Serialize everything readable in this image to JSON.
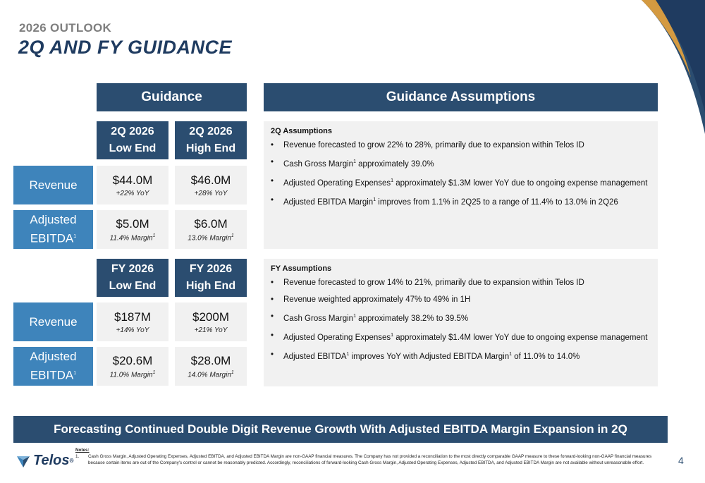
{
  "header": {
    "subtitle": "2026 OUTLOOK",
    "title": "2Q AND FY GUIDANCE"
  },
  "guidance": {
    "title": "Guidance",
    "q2": {
      "low_header": [
        "2Q 2026",
        "Low End"
      ],
      "high_header": [
        "2Q 2026",
        "High End"
      ],
      "revenue_label": "Revenue",
      "ebitda_label": "Adjusted",
      "ebitda_label2": "EBITDA",
      "revenue_low": "$44.0M",
      "revenue_low_sub": "+22% YoY",
      "revenue_high": "$46.0M",
      "revenue_high_sub": "+28% YoY",
      "ebitda_low": "$5.0M",
      "ebitda_low_sub": "11.4% Margin",
      "ebitda_high": "$6.0M",
      "ebitda_high_sub": "13.0% Margin"
    },
    "fy": {
      "low_header": [
        "FY 2026",
        "Low End"
      ],
      "high_header": [
        "FY 2026",
        "High End"
      ],
      "revenue_label": "Revenue",
      "ebitda_label": "Adjusted",
      "ebitda_label2": "EBITDA",
      "revenue_low": "$187M",
      "revenue_low_sub": "+14% YoY",
      "revenue_high": "$200M",
      "revenue_high_sub": "+21% YoY",
      "ebitda_low": "$20.6M",
      "ebitda_low_sub": "11.0% Margin",
      "ebitda_high": "$28.0M",
      "ebitda_high_sub": "14.0% Margin"
    }
  },
  "assumptions": {
    "title": "Guidance Assumptions",
    "q2_title": "2Q Assumptions",
    "q2_bullets": [
      "Revenue forecasted to grow 22% to 28%, primarily due to expansion within Telos ID",
      [
        "Cash Gross Margin",
        " approximately 39.0%"
      ],
      [
        "Adjusted Operating Expenses",
        " approximately $1.3M lower YoY due to ongoing expense management"
      ],
      [
        "Adjusted EBITDA Margin",
        " improves from 1.1% in 2Q25 to a range of 11.4% to 13.0% in 2Q26"
      ]
    ],
    "fy_title": "FY Assumptions",
    "fy_bullets": [
      "Revenue forecasted to grow 14% to 21%, primarily due to expansion within Telos ID",
      "Revenue weighted approximately 47% to 49% in 1H",
      [
        "Cash Gross Margin",
        " approximately 38.2% to 39.5%"
      ],
      [
        "Adjusted Operating Expenses",
        " approximately $1.4M lower YoY due to ongoing expense management"
      ],
      [
        "Adjusted EBITDA",
        " improves YoY with Adjusted EBITDA Margin",
        " of 11.0% to 14.0%"
      ]
    ]
  },
  "footnote_marker": "1",
  "bullet_char": "•",
  "banner": "Forecasting Continued Double Digit Revenue Growth With Adjusted EBITDA Margin Expansion in 2Q",
  "logo": {
    "text": "Telos",
    "registered": "®"
  },
  "notes": {
    "heading": "Notes:",
    "number": "1.",
    "text": "Cash Gross Margin, Adjusted Operating Expenses, Adjusted EBITDA, and Adjusted EBITDA Margin are non-GAAP financial measures. The Company has not provided a reconciliation to the most directly comparable GAAP measure to these forward-looking non-GAAP financial measures because certain items are out of the Company's control or cannot be reasonably predicted. Accordingly, reconciliations of forward-looking Cash Gross Margin, Adjusted Operating Expenses, Adjusted EBITDA, and Adjusted EBITDA Margin are not available without unreasonable effort."
  },
  "page_number": "4",
  "colors": {
    "navy": "#2b4d70",
    "blue": "#3e84bb",
    "panel": "#f1f1f1",
    "gray": "#7f7f7f"
  }
}
